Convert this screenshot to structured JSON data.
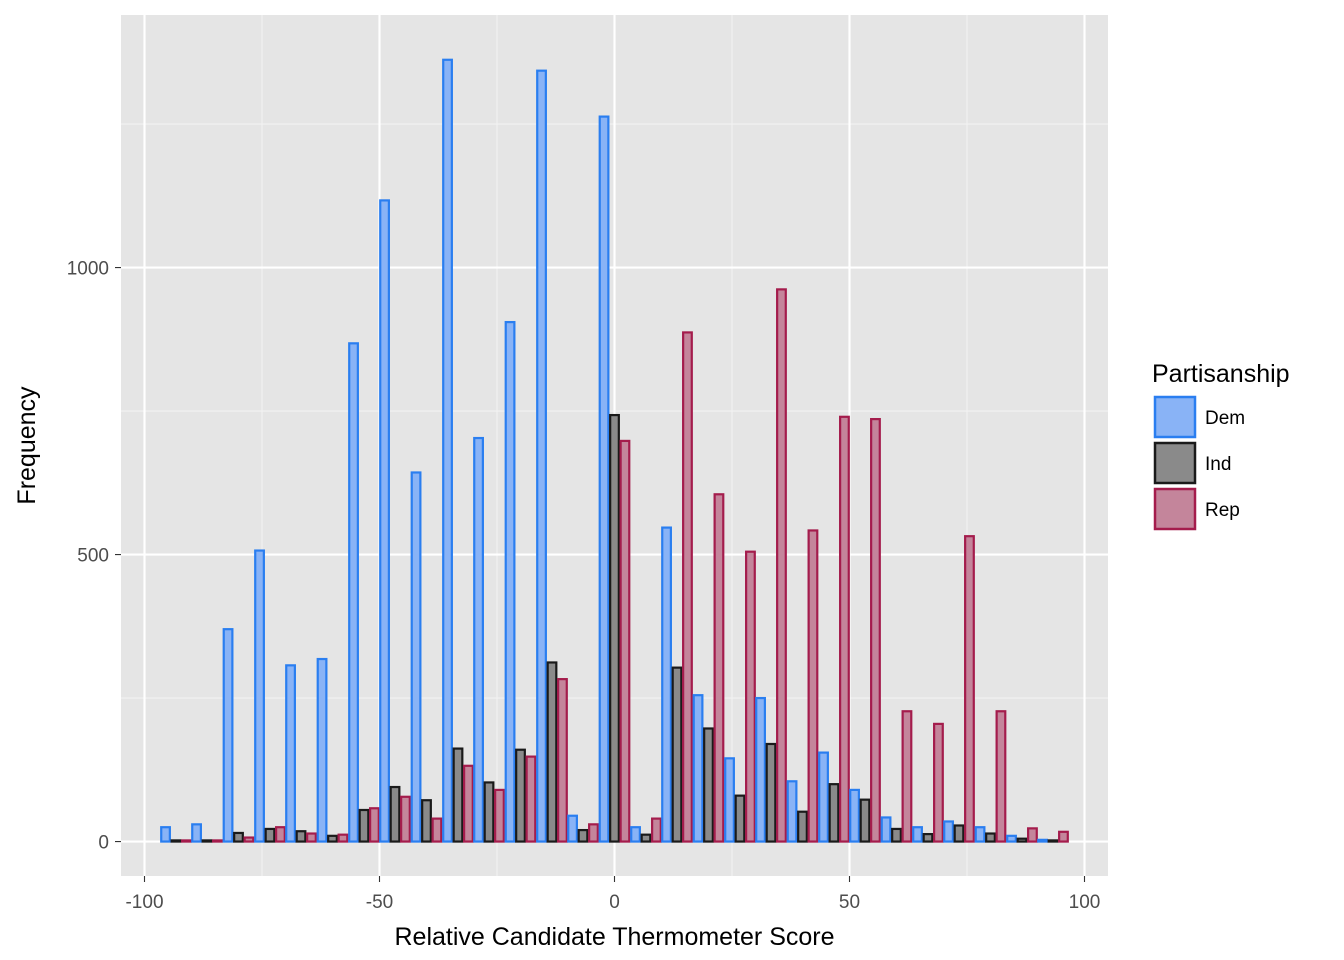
{
  "chart_data": {
    "type": "bar",
    "title": "",
    "xlabel": "Relative Candidate Thermometer Score",
    "ylabel": "Frequency",
    "xlim": [
      -105,
      105
    ],
    "ylim": [
      -60,
      1440
    ],
    "x_ticks": [
      -100,
      -50,
      0,
      50,
      100
    ],
    "x_tick_labels": [
      "-100",
      "-50",
      "0",
      "50",
      "100"
    ],
    "y_ticks": [
      0,
      500,
      1000
    ],
    "y_tick_labels": [
      "0",
      "500",
      "1000"
    ],
    "y_minor_ticks": [
      250,
      750,
      1250
    ],
    "bin_width": 6.67,
    "bin_centers": [
      -93.3,
      -86.7,
      -80,
      -73.3,
      -66.7,
      -60,
      -53.3,
      -46.7,
      -40,
      -33.3,
      -26.7,
      -20,
      -13.3,
      -6.7,
      0,
      6.7,
      13.3,
      20,
      26.7,
      33.3,
      40,
      46.7,
      53.3,
      60,
      66.7,
      73.3,
      80,
      86.7,
      93.3
    ],
    "legend_title": "Partisanship",
    "legend_position": "right",
    "series": [
      {
        "name": "Dem",
        "fill": "#89b3f6",
        "stroke": "#2a7ef0",
        "values": [
          25,
          30,
          370,
          507,
          307,
          318,
          868,
          1117,
          643,
          1362,
          703,
          905,
          1343,
          45,
          1263,
          25,
          547,
          255,
          145,
          250,
          105,
          155,
          90,
          42,
          25,
          35,
          25,
          10,
          3
        ]
      },
      {
        "name": "Ind",
        "fill": "#8a8a8a",
        "stroke": "#1a1a1a",
        "values": [
          2,
          2,
          15,
          22,
          18,
          10,
          55,
          95,
          72,
          162,
          103,
          160,
          312,
          20,
          743,
          12,
          303,
          197,
          80,
          170,
          52,
          100,
          73,
          22,
          13,
          28,
          14,
          5,
          2
        ]
      },
      {
        "name": "Rep",
        "fill": "#c4859b",
        "stroke": "#a41c4c",
        "values": [
          2,
          2,
          7,
          25,
          14,
          12,
          58,
          78,
          40,
          132,
          90,
          148,
          283,
          30,
          698,
          40,
          887,
          605,
          505,
          962,
          542,
          740,
          736,
          227,
          205,
          532,
          227,
          23,
          17
        ]
      }
    ]
  }
}
